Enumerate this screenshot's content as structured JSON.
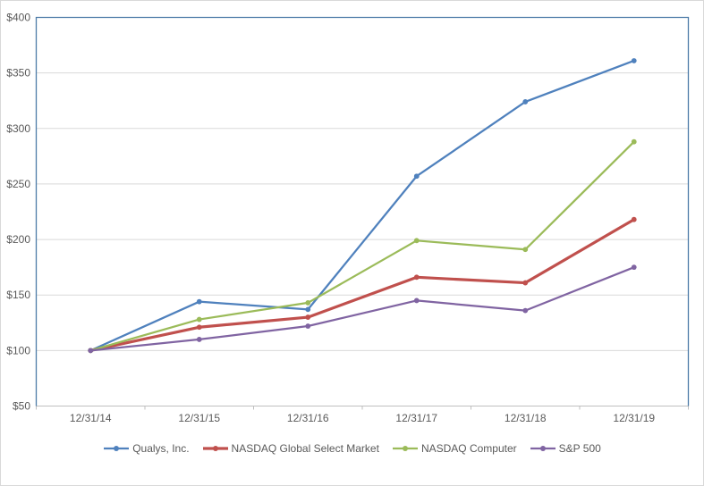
{
  "chart_data": {
    "type": "line",
    "title": "",
    "x_categories": [
      "12/31/14",
      "12/31/15",
      "12/31/16",
      "12/31/17",
      "12/31/18",
      "12/31/19"
    ],
    "y_axis": {
      "min": 50,
      "max": 400,
      "tick_step": 50,
      "tick_values": [
        400,
        350,
        300,
        250,
        200,
        150,
        100,
        50
      ],
      "tick_labels": [
        "$400",
        "$350",
        "$300",
        "$250",
        "$200",
        "$150",
        "$100",
        "$50"
      ]
    },
    "series": [
      {
        "name": "Qualys, Inc.",
        "color": "#4F81BD",
        "line_width": 2.25,
        "marker": "circle",
        "values": [
          100,
          144,
          137,
          257,
          324,
          361
        ]
      },
      {
        "name": "NASDAQ Global Select Market",
        "color": "#C0504D",
        "line_width": 3.2,
        "marker": "circle",
        "values": [
          100,
          121,
          130,
          166,
          161,
          218
        ]
      },
      {
        "name": "NASDAQ Computer",
        "color": "#9BBB59",
        "line_width": 2.25,
        "marker": "circle",
        "values": [
          100,
          128,
          143,
          199,
          191,
          288
        ]
      },
      {
        "name": "S&P 500",
        "color": "#8064A2",
        "line_width": 2.25,
        "marker": "circle",
        "values": [
          100,
          110,
          122,
          145,
          136,
          175
        ]
      }
    ],
    "grid": true,
    "legend_position": "bottom",
    "colors": {
      "background": "#FFFFFF",
      "gridline": "#D9D9D9",
      "plot_border": "#4E7CA8",
      "axis_line": "#BFBFBF",
      "tick_label": "#595959",
      "legend_text": "#595959"
    }
  }
}
